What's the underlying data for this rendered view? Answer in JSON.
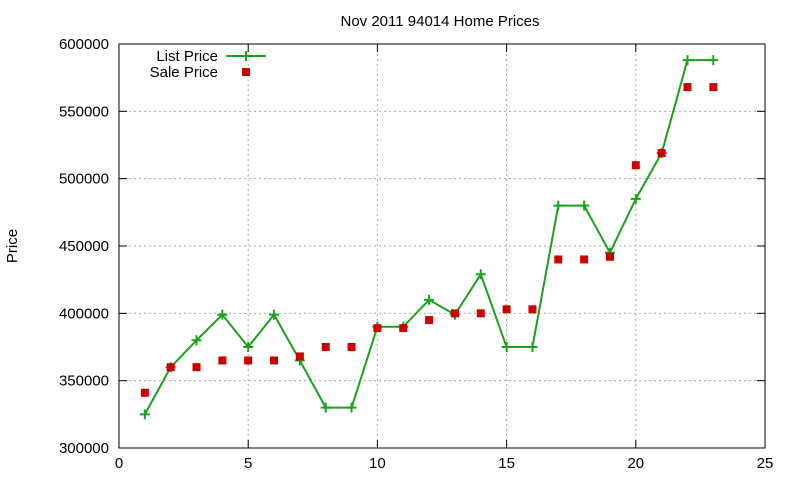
{
  "chart_data": {
    "type": "line",
    "title": "Nov 2011 94014 Home Prices",
    "xlabel": "",
    "ylabel": "Price",
    "xlim": [
      0,
      25
    ],
    "ylim": [
      300000,
      600000
    ],
    "x_ticks": [
      0,
      5,
      10,
      15,
      20,
      25
    ],
    "y_ticks": [
      300000,
      350000,
      400000,
      450000,
      500000,
      550000,
      600000
    ],
    "grid": true,
    "legend_position": "top-left",
    "series": [
      {
        "name": "List Price",
        "style": "line-with-plus-markers",
        "color": "#1aa31a",
        "x": [
          1,
          2,
          3,
          4,
          5,
          6,
          7,
          8,
          9,
          10,
          11,
          12,
          13,
          14,
          15,
          16,
          17,
          18,
          19,
          20,
          21,
          22,
          23
        ],
        "values": [
          325000,
          360000,
          380000,
          399000,
          375000,
          399000,
          365000,
          330000,
          330000,
          390000,
          390000,
          410000,
          399000,
          429000,
          375000,
          375000,
          480000,
          480000,
          445000,
          485000,
          519000,
          588000,
          588000
        ]
      },
      {
        "name": "Sale Price",
        "style": "square-markers",
        "color": "#cc0000",
        "x": [
          1,
          2,
          3,
          4,
          5,
          6,
          7,
          8,
          9,
          10,
          11,
          12,
          13,
          14,
          15,
          16,
          17,
          18,
          19,
          20,
          21,
          22,
          23
        ],
        "values": [
          341000,
          360000,
          360000,
          365000,
          365000,
          365000,
          368000,
          375000,
          375000,
          389000,
          389000,
          395000,
          400000,
          400000,
          403000,
          403000,
          440000,
          440000,
          442000,
          510000,
          519000,
          568000,
          568000
        ]
      }
    ]
  }
}
